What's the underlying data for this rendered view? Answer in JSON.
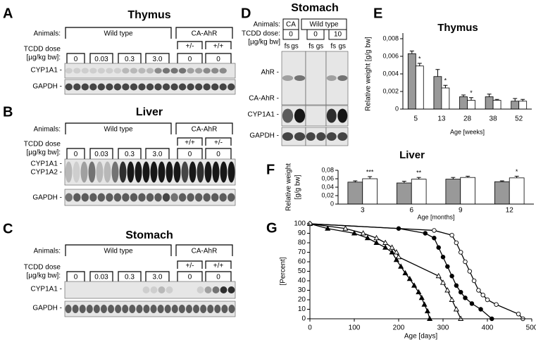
{
  "blots": [
    {
      "letter": "A",
      "title": "Thymus",
      "animals_label": "Animals:",
      "groups": [
        "Wild type",
        "CA-AhR"
      ],
      "dose_label_1": "TCDD dose",
      "dose_label_2": "[µg/kg bw]:",
      "genotypes": [
        "+/-",
        "+/+"
      ],
      "doses": [
        "0",
        "0.03",
        "0.3",
        "3.0",
        "0",
        "0"
      ],
      "rows": [
        "CYP1A1 -",
        "GAPDH -"
      ]
    },
    {
      "letter": "B",
      "title": "Liver",
      "animals_label": "Animals:",
      "groups": [
        "Wild type",
        "CA-AhR"
      ],
      "dose_label_1": "TCDD dose",
      "dose_label_2": "[µg/kg bw]:",
      "genotypes": [
        "+/+",
        "+/-"
      ],
      "doses": [
        "0",
        "0.03",
        "0.3",
        "3.0",
        "0",
        "0"
      ],
      "rows": [
        "CYP1A1 -",
        "CYP1A2 -",
        "GAPDH -"
      ]
    },
    {
      "letter": "C",
      "title": "Stomach",
      "animals_label": "Animals:",
      "groups": [
        "Wild type",
        "CA-AhR"
      ],
      "dose_label_1": "TCDD dose",
      "dose_label_2": "[µg/kg bw]:",
      "genotypes": [
        "+/-",
        "+/+"
      ],
      "doses": [
        "0",
        "0.03",
        "0.3",
        "3.0",
        "0",
        "0"
      ],
      "rows": [
        "CYP1A1 -",
        "GAPDH -"
      ]
    },
    {
      "letter": "D",
      "title": "Stomach",
      "animals_label": "Animals:",
      "groups": [
        "CA",
        "Wild type"
      ],
      "dose_label_1": "TCDD dose:",
      "dose_label_2": "[µg/kg bw]",
      "doses": [
        "0",
        "0",
        "10"
      ],
      "lanes": [
        "fs",
        "gs",
        "fs",
        "gs",
        "fs",
        "gs"
      ],
      "rows": [
        "AhR -",
        "CA-AhR -",
        "CYP1A1 -",
        "GAPDH -"
      ]
    }
  ],
  "chart_data": [
    {
      "type": "bar",
      "letter": "E",
      "title": "Thymus",
      "ylabel": "Relative weight [g/g bw]",
      "xlabel": "Age [weeks]",
      "categories": [
        "5",
        "13",
        "28",
        "38",
        "52"
      ],
      "series": [
        {
          "color": "#999999",
          "values": [
            0.0063,
            0.0037,
            0.0014,
            0.0014,
            0.0009
          ],
          "errors": [
            0.0003,
            0.0008,
            0.0002,
            0.0003,
            0.0003
          ]
        },
        {
          "color": "#ffffff",
          "values": [
            0.0049,
            0.0024,
            0.001,
            0.001,
            0.0009
          ],
          "errors": [
            0.0003,
            0.0003,
            0.0003,
            0.0001,
            0.0002
          ]
        }
      ],
      "annotations": [
        {
          "category": "5",
          "text": "*"
        },
        {
          "category": "13",
          "text": "*"
        },
        {
          "category": "28",
          "text": "*"
        }
      ],
      "ylim": [
        0,
        0.008
      ],
      "yticks": [
        0,
        {
          "value": 0.002,
          "label": "0,002"
        },
        {
          "value": 0.004,
          "label": "0,004"
        },
        {
          "value": 0.006,
          "label": "0,006"
        },
        {
          "value": 0.008,
          "label": "0,008"
        }
      ]
    },
    {
      "type": "bar",
      "letter": "F",
      "title": "Liver",
      "ylabel": [
        "Relative weight",
        "[g/g bw]"
      ],
      "xlabel": "Age [months]",
      "categories": [
        "3",
        "6",
        "9",
        "12"
      ],
      "series": [
        {
          "color": "#999999",
          "values": [
            0.052,
            0.05,
            0.059,
            0.053
          ],
          "errors": [
            0.003,
            0.004,
            0.004,
            0.002
          ]
        },
        {
          "color": "#ffffff",
          "values": [
            0.06,
            0.059,
            0.063,
            0.062
          ],
          "errors": [
            0.005,
            0.004,
            0.003,
            0.004
          ]
        }
      ],
      "annotations": [
        {
          "category": "3",
          "text": "***"
        },
        {
          "category": "6",
          "text": "**"
        },
        {
          "category": "12",
          "text": "*"
        }
      ],
      "ylim": [
        0,
        0.08
      ],
      "yticks": [
        0,
        {
          "value": 0.02,
          "label": "0,02"
        },
        {
          "value": 0.04,
          "label": "0,04"
        },
        {
          "value": 0.06,
          "label": "0,06"
        },
        {
          "value": 0.08,
          "label": "0,08"
        }
      ]
    },
    {
      "type": "line",
      "letter": "G",
      "ylabel": "[Percent]",
      "xlabel": "Age [days]",
      "series": [
        {
          "color": "#000000",
          "marker": "triangle",
          "filled": true,
          "x": [
            0,
            40,
            100,
            130,
            150,
            170,
            185,
            195,
            205,
            215,
            225,
            235,
            245,
            252,
            258,
            265,
            270
          ],
          "values": [
            100,
            95,
            90,
            85,
            80,
            75,
            70,
            62,
            55,
            48,
            42,
            35,
            28,
            22,
            15,
            8,
            0
          ]
        },
        {
          "color": "#000000",
          "marker": "triangle",
          "filled": false,
          "x": [
            0,
            80,
            120,
            150,
            170,
            185,
            195,
            200,
            290,
            300,
            310,
            320,
            330,
            340
          ],
          "values": [
            100,
            95,
            90,
            85,
            80,
            75,
            70,
            65,
            45,
            38,
            30,
            20,
            10,
            0
          ]
        },
        {
          "color": "#000000",
          "marker": "circle",
          "filled": true,
          "x": [
            0,
            200,
            260,
            280,
            290,
            300,
            310,
            320,
            330,
            340,
            350,
            365,
            385,
            410
          ],
          "values": [
            100,
            95,
            90,
            85,
            75,
            65,
            55,
            45,
            35,
            28,
            22,
            16,
            10,
            0
          ]
        },
        {
          "color": "#000000",
          "marker": "circle",
          "filled": false,
          "x": [
            0,
            280,
            320,
            330,
            340,
            350,
            360,
            370,
            380,
            390,
            400,
            420,
            470,
            480
          ],
          "values": [
            100,
            93,
            88,
            80,
            70,
            60,
            50,
            40,
            30,
            25,
            20,
            15,
            5,
            0
          ]
        }
      ],
      "xlim": [
        0,
        500
      ],
      "xticks": [
        0,
        100,
        200,
        300,
        400,
        500
      ],
      "ylim": [
        0,
        100
      ],
      "yticks": [
        0,
        10,
        20,
        30,
        40,
        50,
        60,
        70,
        80,
        90,
        100
      ]
    }
  ]
}
